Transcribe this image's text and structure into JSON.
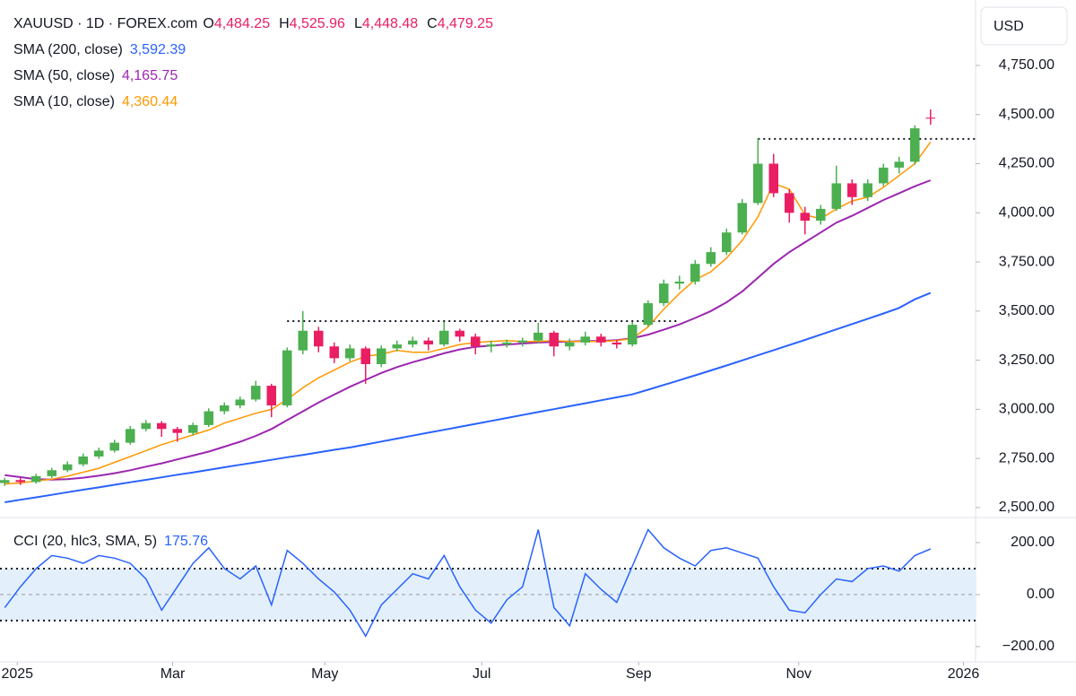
{
  "chart_data": [
    {
      "type": "candlestick",
      "title": "XAUUSD · 1D · FOREX.com",
      "currency": "USD",
      "ohlc_letters": [
        "O",
        "H",
        "L",
        "C"
      ],
      "last_ohlc_labels": [
        "4,484.25",
        "4,525.96",
        "4,448.48",
        "4,479.25"
      ],
      "up_color": "#4caf50",
      "down_color": "#e91e63",
      "label_color": "#e91e63",
      "categories": [
        null,
        null,
        null,
        null,
        null,
        null,
        null,
        null,
        null,
        null,
        null,
        null,
        null,
        null,
        null,
        null,
        null,
        null,
        null,
        null,
        null,
        null,
        null,
        null,
        null,
        null,
        null,
        null,
        null,
        null,
        null,
        null,
        null,
        null,
        null,
        null,
        null,
        null,
        null,
        null,
        null,
        null,
        null,
        null,
        null,
        null,
        null,
        null,
        null,
        null,
        null,
        null,
        null,
        null,
        null,
        null,
        null,
        null,
        null,
        null
      ],
      "open": [
        2625,
        2640,
        2630,
        2660,
        2690,
        2720,
        2760,
        2790,
        2830,
        2900,
        2930,
        2900,
        2880,
        2920,
        2990,
        3020,
        3050,
        3120,
        3020,
        3300,
        3400,
        3320,
        3260,
        3310,
        3230,
        3310,
        3330,
        3350,
        3330,
        3400,
        3370,
        3320,
        3330,
        3340,
        3350,
        3390,
        3320,
        3340,
        3370,
        3340,
        3330,
        3430,
        3540,
        3640,
        3650,
        3740,
        3800,
        3900,
        4050,
        4250,
        4100,
        4000,
        3960,
        4020,
        4150,
        4080,
        4150,
        4230,
        4260,
        4484.25
      ],
      "high": [
        2652,
        2650,
        2672,
        2702,
        2735,
        2775,
        2805,
        2845,
        2915,
        2945,
        2940,
        2910,
        2932,
        3005,
        3035,
        3065,
        3145,
        3130,
        3315,
        3500,
        3420,
        3340,
        3330,
        3320,
        3325,
        3350,
        3370,
        3365,
        3445,
        3410,
        3385,
        3350,
        3355,
        3365,
        3440,
        3400,
        3360,
        3395,
        3385,
        3355,
        3445,
        3555,
        3660,
        3680,
        3760,
        3825,
        3920,
        4070,
        4380,
        4300,
        4120,
        4030,
        4040,
        4240,
        4170,
        4170,
        4250,
        4285,
        4445,
        4525.96
      ],
      "low": [
        2610,
        2615,
        2622,
        2650,
        2680,
        2710,
        2748,
        2780,
        2820,
        2888,
        2860,
        2835,
        2868,
        2910,
        2975,
        3005,
        3040,
        2960,
        3010,
        3280,
        3290,
        3235,
        3245,
        3130,
        3215,
        3295,
        3315,
        3300,
        3320,
        3345,
        3280,
        3290,
        3315,
        3320,
        3335,
        3270,
        3300,
        3325,
        3320,
        3310,
        3320,
        3420,
        3525,
        3610,
        3635,
        3725,
        3785,
        3890,
        4040,
        4080,
        3950,
        3890,
        3940,
        4010,
        4040,
        4060,
        4135,
        4200,
        4245,
        4448.48
      ],
      "close": [
        2640,
        2630,
        2660,
        2690,
        2720,
        2760,
        2790,
        2830,
        2900,
        2930,
        2900,
        2880,
        2920,
        2990,
        3020,
        3050,
        3120,
        3020,
        3300,
        3400,
        3320,
        3260,
        3310,
        3230,
        3310,
        3330,
        3350,
        3330,
        3400,
        3370,
        3320,
        3330,
        3340,
        3350,
        3390,
        3320,
        3340,
        3370,
        3340,
        3330,
        3430,
        3540,
        3640,
        3650,
        3740,
        3800,
        3900,
        4050,
        4250,
        4100,
        4000,
        3960,
        4020,
        4150,
        4080,
        4150,
        4230,
        4260,
        4430,
        4479.25
      ],
      "series": [
        {
          "name": "SMA (200, close)",
          "last_label": "3,592.39",
          "color": "#2962ff",
          "values": [
            2527,
            2540,
            2552,
            2565,
            2578,
            2591,
            2603,
            2616,
            2629,
            2641,
            2654,
            2667,
            2679,
            2692,
            2705,
            2718,
            2730,
            2743,
            2756,
            2768,
            2781,
            2794,
            2806,
            2821,
            2836,
            2851,
            2866,
            2881,
            2896,
            2911,
            2926,
            2941,
            2956,
            2971,
            2986,
            3001,
            3016,
            3031,
            3046,
            3061,
            3076,
            3100,
            3124,
            3148,
            3173,
            3198,
            3223,
            3249,
            3275,
            3301,
            3327,
            3353,
            3380,
            3407,
            3434,
            3461,
            3488,
            3516,
            3560,
            3592.39
          ]
        },
        {
          "name": "SMA (50, close)",
          "last_label": "4,165.75",
          "color": "#9c27b0",
          "values": [
            2665,
            2655,
            2645,
            2642,
            2645,
            2652,
            2662,
            2675,
            2690,
            2708,
            2725,
            2745,
            2765,
            2785,
            2810,
            2835,
            2865,
            2900,
            2945,
            2990,
            3035,
            3075,
            3115,
            3150,
            3185,
            3215,
            3240,
            3262,
            3285,
            3305,
            3318,
            3325,
            3330,
            3335,
            3340,
            3343,
            3345,
            3347,
            3348,
            3352,
            3362,
            3380,
            3405,
            3432,
            3465,
            3500,
            3545,
            3600,
            3670,
            3740,
            3800,
            3850,
            3900,
            3950,
            3985,
            4025,
            4065,
            4100,
            4135,
            4165.75
          ]
        },
        {
          "name": "SMA (10, close)",
          "last_label": "4,360.44",
          "color": "#ff9800",
          "values": [
            2620,
            2625,
            2635,
            2645,
            2660,
            2680,
            2700,
            2730,
            2760,
            2790,
            2820,
            2845,
            2870,
            2895,
            2930,
            2955,
            2980,
            3000,
            3050,
            3110,
            3160,
            3200,
            3240,
            3270,
            3280,
            3300,
            3290,
            3290,
            3310,
            3330,
            3340,
            3345,
            3350,
            3345,
            3345,
            3350,
            3345,
            3345,
            3345,
            3350,
            3360,
            3420,
            3510,
            3590,
            3660,
            3700,
            3770,
            3860,
            3980,
            4150,
            4120,
            3990,
            3970,
            4020,
            4060,
            4080,
            4130,
            4190,
            4250,
            4360.44
          ]
        }
      ],
      "levels": [
        {
          "value": 3449,
          "x_range": [
            18,
            43
          ]
        },
        {
          "value": 4376,
          "x_range": [
            48,
            61.87
          ]
        }
      ],
      "xlim": [
        -0.3,
        61.87
      ],
      "ylim": [
        2454,
        5083
      ],
      "yticks": [
        {
          "value": 2500,
          "label": "2,500.00"
        },
        {
          "value": 2750,
          "label": "2,750.00"
        },
        {
          "value": 3000,
          "label": "3,000.00"
        },
        {
          "value": 3250,
          "label": "3,250.00"
        },
        {
          "value": 3500,
          "label": "3,500.00"
        },
        {
          "value": 3750,
          "label": "3,750.00"
        },
        {
          "value": 4000,
          "label": "4,000.00"
        },
        {
          "value": 4250,
          "label": "4,250.00"
        },
        {
          "value": 4500,
          "label": "4,500.00"
        },
        {
          "value": 4750,
          "label": "4,750.00"
        }
      ]
    },
    {
      "type": "line",
      "title": "CCI (20, hlc3, SMA, 5)",
      "last_label": "175.76",
      "color": "#2962ff",
      "band_color": "#e3f0fb",
      "categories": [
        null,
        null,
        null,
        null,
        null,
        null,
        null,
        null,
        null,
        null,
        null,
        null,
        null,
        null,
        null,
        null,
        null,
        null,
        null,
        null,
        null,
        null,
        null,
        null,
        null,
        null,
        null,
        null,
        null,
        null,
        null,
        null,
        null,
        null,
        null,
        null,
        null,
        null,
        null,
        null,
        null,
        null,
        null,
        null,
        null,
        null,
        null,
        null,
        null,
        null,
        null,
        null,
        null,
        null,
        null,
        null,
        null,
        null,
        null,
        null
      ],
      "values": [
        -50,
        30,
        100,
        150,
        140,
        120,
        150,
        140,
        120,
        60,
        -60,
        30,
        120,
        180,
        100,
        60,
        110,
        -40,
        170,
        120,
        60,
        10,
        -60,
        -160,
        -40,
        20,
        80,
        60,
        150,
        30,
        -60,
        -110,
        -20,
        30,
        250,
        -50,
        -120,
        80,
        20,
        -30,
        110,
        250,
        180,
        140,
        110,
        170,
        180,
        160,
        140,
        30,
        -60,
        -70,
        0,
        60,
        50,
        100,
        110,
        90,
        150,
        175.76
      ],
      "band_levels": [
        100,
        -100
      ],
      "mid_level": 0,
      "xlim": [
        -0.3,
        61.87
      ],
      "ylim": [
        -259,
        293
      ],
      "yticks": [
        {
          "value": 200,
          "label": "200.00"
        },
        {
          "value": 0,
          "label": "0.00"
        },
        {
          "value": -200,
          "label": "−200.00"
        }
      ],
      "xticks": [
        {
          "value": 0.8,
          "label": "2025"
        },
        {
          "value": 10.7,
          "label": "Mar"
        },
        {
          "value": 20.4,
          "label": "May"
        },
        {
          "value": 30.4,
          "label": "Jul"
        },
        {
          "value": 40.4,
          "label": "Sep"
        },
        {
          "value": 50.6,
          "label": "Nov"
        },
        {
          "value": 61.1,
          "label": "2026"
        }
      ]
    }
  ]
}
